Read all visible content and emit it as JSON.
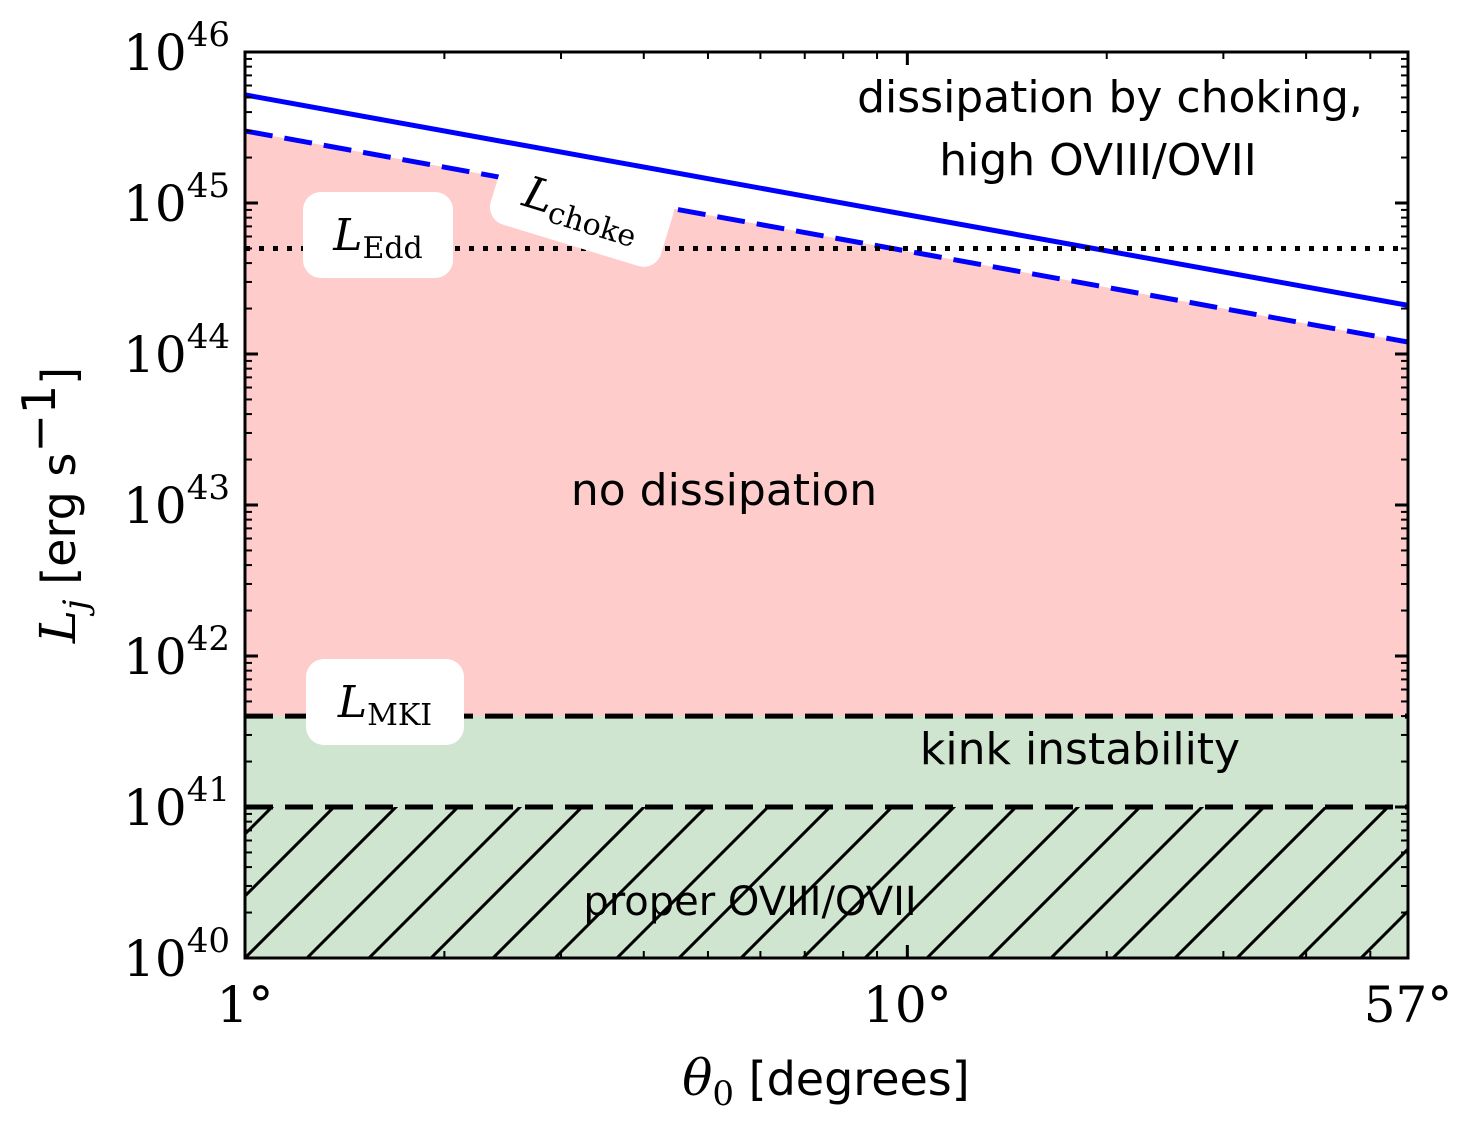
{
  "chart_data": {
    "type": "line",
    "x_scale": "log",
    "y_scale": "log",
    "xlim": [
      1,
      57
    ],
    "ylim": [
      1e+40,
      1e+46
    ],
    "x_ticks": [
      {
        "value": 1,
        "label": "1°"
      },
      {
        "value": 10,
        "label": "10°"
      },
      {
        "value": 57,
        "label": "57°"
      }
    ],
    "y_ticks": [
      {
        "value": 1e+40,
        "base": "10",
        "exp": "40"
      },
      {
        "value": 1e+41,
        "base": "10",
        "exp": "41"
      },
      {
        "value": 1e+42,
        "base": "10",
        "exp": "42"
      },
      {
        "value": 1e+43,
        "base": "10",
        "exp": "43"
      },
      {
        "value": 1e+44,
        "base": "10",
        "exp": "44"
      },
      {
        "value": 1e+45,
        "base": "10",
        "exp": "45"
      },
      {
        "value": 1e+46,
        "base": "10",
        "exp": "46"
      }
    ],
    "xlabel": {
      "symbol": "θ",
      "sub": "0",
      "unit": "[degrees]"
    },
    "ylabel": {
      "symbol": "L",
      "sub": "j",
      "unit": "[erg s",
      "unit_exp": "−1",
      "unit_close": "]"
    },
    "series": [
      {
        "name_base": "L",
        "name_sub": "choke",
        "style": "solid",
        "color": "#0000ff",
        "x": [
          1,
          57
        ],
        "y": [
          5.2e+45,
          2.1e+44
        ]
      },
      {
        "style": "dashed",
        "color": "#0000ff",
        "x": [
          1,
          57
        ],
        "y": [
          3e+45,
          1.2e+44
        ]
      },
      {
        "name_base": "L",
        "name_sub": "Edd",
        "style": "dotted",
        "color": "#000000",
        "x": [
          1,
          57
        ],
        "y": [
          5e+44,
          5e+44
        ]
      },
      {
        "name_base": "L",
        "name_sub": "MKI",
        "style": "dashed",
        "color": "#000000",
        "x": [
          1,
          57
        ],
        "y": [
          4e+41,
          4e+41
        ]
      },
      {
        "style": "dashed",
        "color": "#000000",
        "x": [
          1,
          57
        ],
        "y": [
          1e+41,
          1e+41
        ]
      }
    ],
    "regions": [
      {
        "label": "no dissipation",
        "color": "#ffcccc",
        "y_lower": 4e+41,
        "upper": "choke_dashed"
      },
      {
        "label": "kink instability",
        "color": "#cfe5cf",
        "y_lower": 1e+41,
        "y_upper": 4e+41
      },
      {
        "label": "proper OVIII/OVII",
        "color": "#cfe5cf",
        "hatch": "/",
        "y_lower": 1e+40,
        "y_upper": 1e+41
      }
    ],
    "annotations": {
      "choking_line1": "dissipation by choking,",
      "choking_line2": "high OVIII/OVII",
      "no_dissipation": "no dissipation",
      "kink": "kink instability",
      "proper": "proper OVIII/OVII"
    }
  }
}
